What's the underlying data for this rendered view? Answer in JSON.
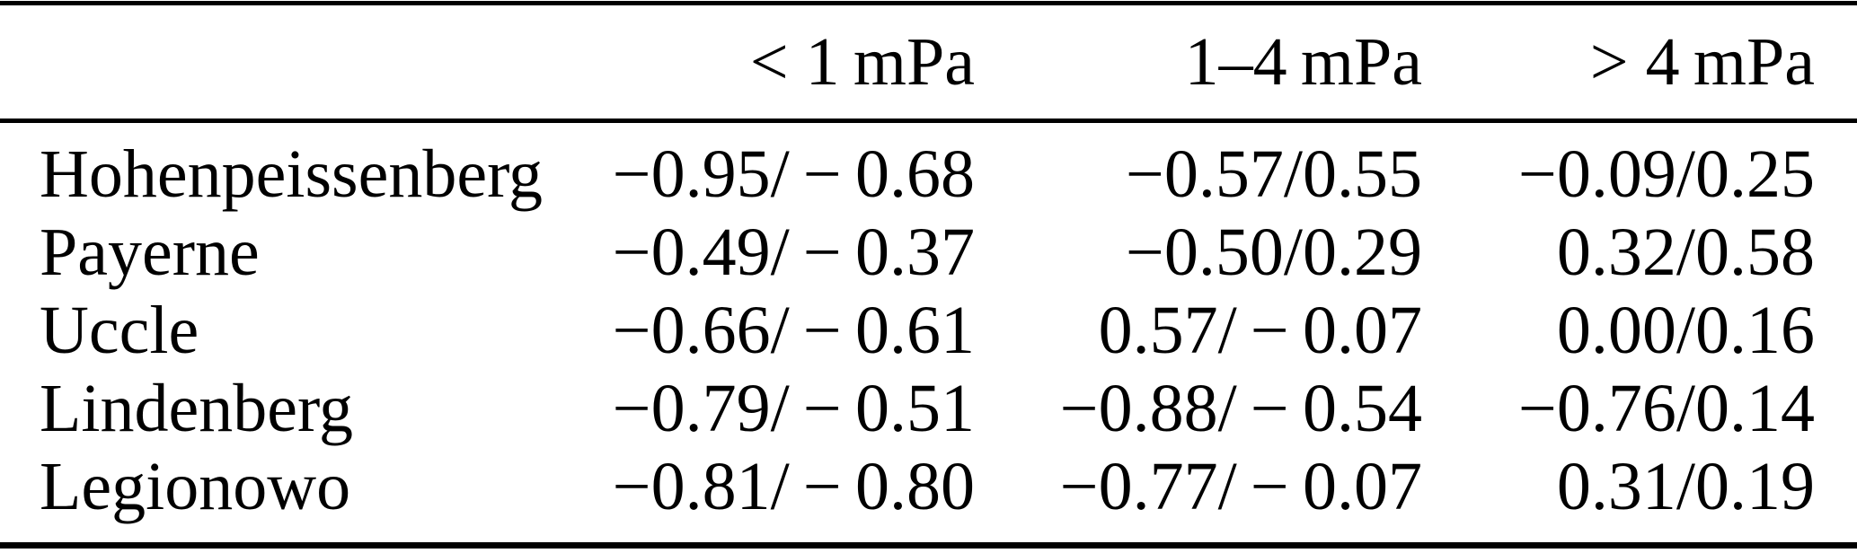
{
  "colors": {
    "text": "#000000",
    "background": "#ffffff",
    "rules": "#000000"
  },
  "table": {
    "columns": [
      "",
      "< 1 mPa",
      "1–4 mPa",
      "> 4 mPa"
    ],
    "rows": [
      {
        "station": "Hohenpeissenberg",
        "values": [
          "−0.95/ − 0.68",
          "−0.57/0.55",
          "−0.09/0.25"
        ]
      },
      {
        "station": "Payerne",
        "values": [
          "−0.49/ − 0.37",
          "−0.50/0.29",
          "0.32/0.58"
        ]
      },
      {
        "station": "Uccle",
        "values": [
          "−0.66/ − 0.61",
          "0.57/ − 0.07",
          "0.00/0.16"
        ]
      },
      {
        "station": "Lindenberg",
        "values": [
          "−0.79/ − 0.51",
          "−0.88/ − 0.54",
          "−0.76/0.14"
        ]
      },
      {
        "station": "Legionowo",
        "values": [
          "−0.81/ − 0.80",
          "−0.77/ − 0.07",
          "0.31/0.19"
        ]
      }
    ]
  }
}
